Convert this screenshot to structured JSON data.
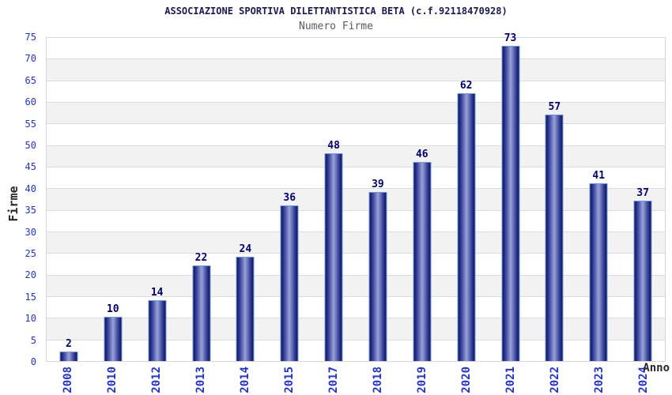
{
  "chart_data": {
    "type": "bar",
    "title": "ASSOCIAZIONE SPORTIVA DILETTANTISTICA BETA (c.f.92118470928)",
    "subtitle": "Numero Firme",
    "xlabel": "Anno",
    "ylabel": "Firme",
    "categories": [
      "2008",
      "2010",
      "2012",
      "2013",
      "2014",
      "2015",
      "2017",
      "2018",
      "2019",
      "2020",
      "2021",
      "2022",
      "2023",
      "2024"
    ],
    "values": [
      2,
      10,
      14,
      22,
      24,
      36,
      48,
      39,
      46,
      62,
      73,
      57,
      41,
      37
    ],
    "ylim": [
      0,
      75
    ],
    "yticks": [
      0,
      5,
      10,
      15,
      20,
      25,
      30,
      35,
      40,
      45,
      50,
      55,
      60,
      65,
      70,
      75
    ],
    "grid": "horizontal-bands-alternating",
    "legend": "none",
    "bar_value_labels": true
  },
  "colors": {
    "title": "#1a1a52",
    "subtitle": "#5a5a62",
    "axis_tick_blue": "#2433cc",
    "value_label_navy": "#00006e",
    "axis_name": "#26262c",
    "bar_edge": "#161d66",
    "bar_mid": "#3a439c",
    "bar_center": "#9aa3d8",
    "bar_border": "#6e9ae0",
    "band_gray": "#f2f2f2",
    "grid_line": "#dcdcdc",
    "plot_border": "#d6d6d6",
    "background": "#ffffff"
  }
}
